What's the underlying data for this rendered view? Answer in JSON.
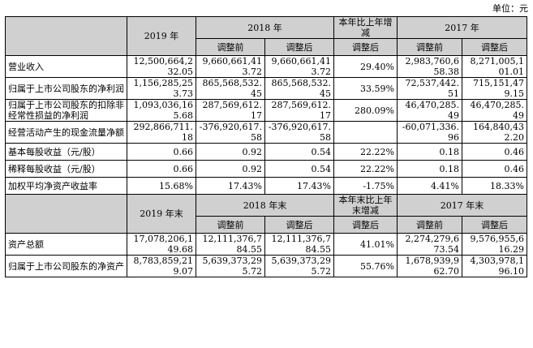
{
  "unit_label": "单位：元",
  "section1": {
    "header": {
      "year2019": "2019 年",
      "year2018": "2018 年",
      "change": "本年比上年增减",
      "year2017": "2017 年",
      "sub_before": "调整前",
      "sub_after": "调整后",
      "sub_change": "调整后"
    },
    "rows": [
      {
        "label": "营业收入",
        "v2019": "12,500,664,232.05",
        "v2018_before": "9,660,661,413.72",
        "v2018_after": "9,660,661,413.72",
        "change": "29.40%",
        "v2017_before": "2,983,760,658.38",
        "v2017_after": "8,271,005,101.01"
      },
      {
        "label": "归属于上市公司股东的净利润",
        "v2019": "1,156,285,253.73",
        "v2018_before": "865,568,532.45",
        "v2018_after": "865,568,532.45",
        "change": "33.59%",
        "v2017_before": "72,537,442.51",
        "v2017_after": "715,151,479.15"
      },
      {
        "label": "归属于上市公司股东的扣除非经常性损益的净利润",
        "v2019": "1,093,036,165.68",
        "v2018_before": "287,569,612.17",
        "v2018_after": "287,569,612.17",
        "change": "280.09%",
        "v2017_before": "46,470,285.49",
        "v2017_after": "46,470,285.49"
      },
      {
        "label": "经营活动产生的现金流量净额",
        "v2019": "292,866,711.18",
        "v2018_before": "-376,920,617.58",
        "v2018_after": "-376,920,617.58",
        "change": "",
        "v2017_before": "-60,071,336.96",
        "v2017_after": "164,840,432.20"
      },
      {
        "label": "基本每股收益（元/股）",
        "v2019": "0.66",
        "v2018_before": "0.92",
        "v2018_after": "0.54",
        "change": "22.22%",
        "v2017_before": "0.18",
        "v2017_after": "0.46"
      },
      {
        "label": "稀释每股收益（元/股）",
        "v2019": "0.66",
        "v2018_before": "0.92",
        "v2018_after": "0.54",
        "change": "22.22%",
        "v2017_before": "0.18",
        "v2017_after": "0.46"
      },
      {
        "label": "加权平均净资产收益率",
        "v2019": "15.68%",
        "v2018_before": "17.43%",
        "v2018_after": "17.43%",
        "change": "-1.75%",
        "v2017_before": "4.41%",
        "v2017_after": "18.33%"
      }
    ]
  },
  "section2": {
    "header": {
      "year2019": "2019 年末",
      "year2018": "2018 年末",
      "change": "本年末比上年末增减",
      "year2017": "2017 年末",
      "sub_before": "调整前",
      "sub_after": "调整后",
      "sub_change": "调整后"
    },
    "rows": [
      {
        "label": "资产总额",
        "v2019": "17,078,206,149.68",
        "v2018_before": "12,111,376,784.55",
        "v2018_after": "12,111,376,784.55",
        "change": "41.01%",
        "v2017_before": "2,274,279,673.54",
        "v2017_after": "9,576,955,616.29"
      },
      {
        "label": "归属于上市公司股东的净资产",
        "v2019": "8,783,859,219.07",
        "v2018_before": "5,639,373,295.72",
        "v2018_after": "5,639,373,295.72",
        "change": "55.76%",
        "v2017_before": "1,678,939,962.70",
        "v2017_after": "4,303,978,196.10"
      }
    ]
  }
}
